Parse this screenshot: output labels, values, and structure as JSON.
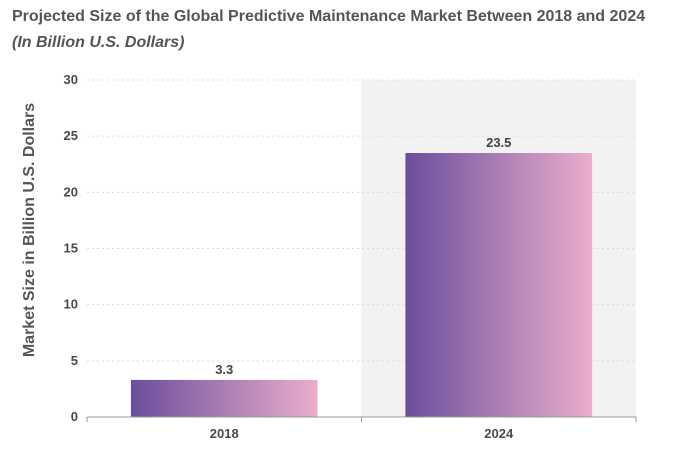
{
  "header": {
    "title": "Projected Size of the Global Predictive Maintenance Market Between 2018 and 2024",
    "subtitle": "(In Billion U.S. Dollars)"
  },
  "chart_data": {
    "type": "bar",
    "categories": [
      "2018",
      "2024"
    ],
    "values": [
      3.3,
      23.5
    ],
    "value_labels": [
      "3.3",
      "23.5"
    ],
    "title": "Projected Size of the Global Predictive Maintenance Market Between 2018 and 2024",
    "subtitle": "(In Billion U.S. Dollars)",
    "xlabel": "",
    "ylabel": "Market Size in Billion U.S. Dollars",
    "ylim": [
      0,
      30
    ],
    "yticks": [
      0,
      5,
      10,
      15,
      20,
      25,
      30
    ],
    "ytick_labels": [
      "0",
      "5",
      "10",
      "15",
      "20",
      "25",
      "30"
    ],
    "grid": true,
    "highlighted_category": "2024",
    "colors": {
      "bar_gradient_start": "#6a4e9c",
      "bar_gradient_end": "#ebaecb",
      "highlight_band": "#f2f2f2",
      "grid": "#dcdcdc",
      "axis": "#999999"
    }
  }
}
